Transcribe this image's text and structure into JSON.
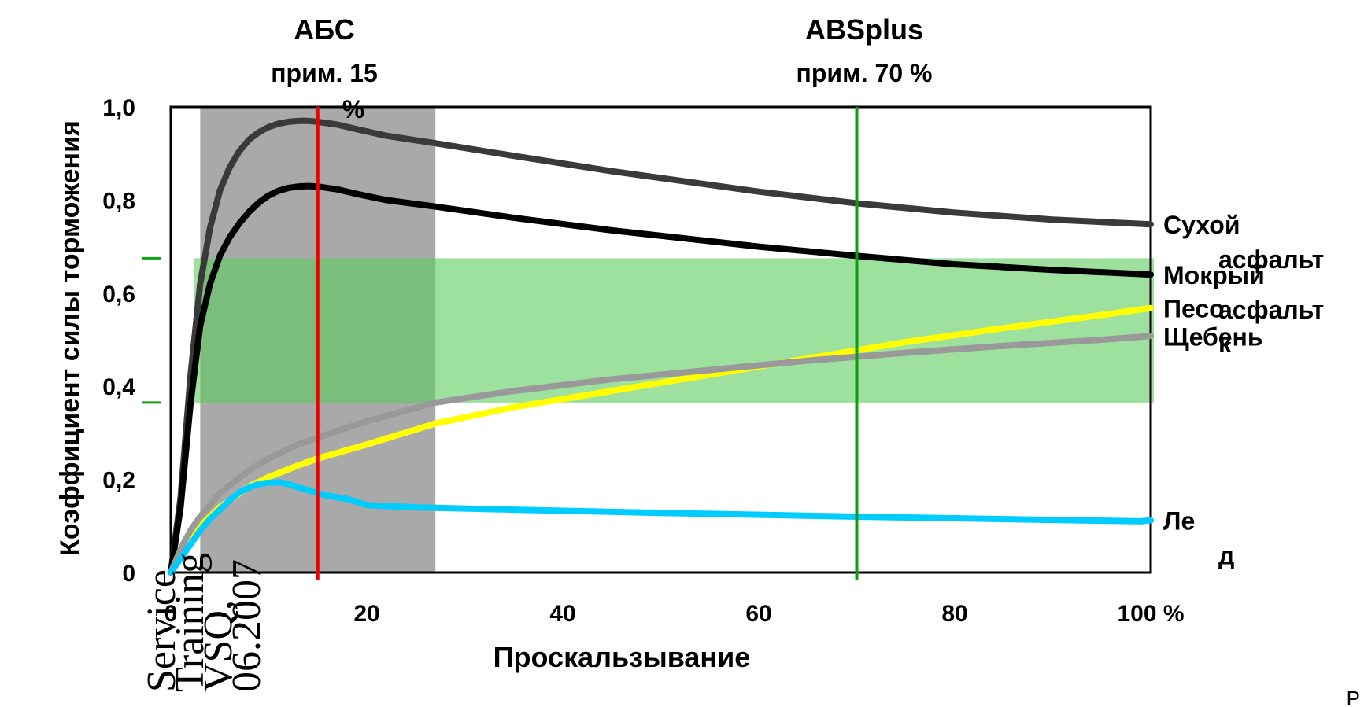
{
  "chart_data": {
    "type": "line",
    "xlabel": "Проскальзывание",
    "ylabel": "Коэффициент силы торможения",
    "xlim": [
      0,
      100
    ],
    "ylim": [
      0,
      1.0
    ],
    "x_ticks": [
      "0",
      "20",
      "40",
      "60",
      "80",
      "100 %"
    ],
    "y_ticks": [
      "0",
      "0,2",
      "0,4",
      "0,6",
      "0,8",
      "1,0"
    ],
    "annotations": {
      "abs_title": "АБС",
      "abs_sub_1": "прим. 15",
      "abs_sub_2": "%",
      "absplus_title": "ABSplus",
      "absplus_sub": "прим. 70 %"
    },
    "regions": {
      "abs_band_x": [
        3,
        27
      ],
      "target_band_y": [
        0.365,
        0.675
      ],
      "abs_line_x": 15,
      "absplus_line_x": 70
    },
    "series": [
      {
        "label_lines": [
          "Сухой",
          "асфальт"
        ],
        "color": "#3a3a3a",
        "x": [
          0,
          1,
          2,
          3,
          4,
          5,
          6,
          7,
          8,
          9,
          10,
          11,
          12,
          13,
          14,
          15,
          17,
          19,
          22,
          27,
          35,
          45,
          60,
          70,
          80,
          90,
          100
        ],
        "values": [
          0.0,
          0.16,
          0.42,
          0.62,
          0.74,
          0.82,
          0.87,
          0.905,
          0.93,
          0.946,
          0.957,
          0.964,
          0.968,
          0.97,
          0.97,
          0.968,
          0.962,
          0.952,
          0.938,
          0.922,
          0.895,
          0.862,
          0.818,
          0.793,
          0.773,
          0.758,
          0.748
        ]
      },
      {
        "label_lines": [
          "Мокрый",
          "асфальт"
        ],
        "color": "#000000",
        "x": [
          0,
          1,
          2,
          3,
          4,
          5,
          6,
          7,
          8,
          9,
          10,
          11,
          12,
          13,
          14,
          15,
          17,
          19,
          22,
          27,
          35,
          45,
          60,
          70,
          80,
          90,
          100
        ],
        "values": [
          0.0,
          0.14,
          0.36,
          0.53,
          0.62,
          0.68,
          0.72,
          0.75,
          0.775,
          0.795,
          0.81,
          0.82,
          0.826,
          0.829,
          0.83,
          0.829,
          0.823,
          0.813,
          0.8,
          0.786,
          0.762,
          0.735,
          0.7,
          0.68,
          0.662,
          0.65,
          0.64
        ]
      },
      {
        "label_lines": [
          "Песо",
          "к"
        ],
        "color": "#ffff00",
        "x": [
          0,
          1,
          2,
          3,
          5,
          8,
          10,
          13,
          15,
          20,
          27,
          35,
          45,
          55,
          65,
          75,
          85,
          95,
          100
        ],
        "values": [
          0.0,
          0.04,
          0.075,
          0.1,
          0.14,
          0.185,
          0.205,
          0.23,
          0.245,
          0.275,
          0.32,
          0.355,
          0.39,
          0.425,
          0.46,
          0.495,
          0.525,
          0.553,
          0.568
        ]
      },
      {
        "label_lines": [
          "Щебень"
        ],
        "color": "#999999",
        "x": [
          0,
          1,
          2,
          3,
          5,
          8,
          10,
          13,
          15,
          20,
          27,
          35,
          45,
          55,
          65,
          75,
          85,
          95,
          100
        ],
        "values": [
          0.0,
          0.05,
          0.09,
          0.12,
          0.17,
          0.22,
          0.245,
          0.275,
          0.29,
          0.325,
          0.365,
          0.39,
          0.415,
          0.435,
          0.455,
          0.472,
          0.487,
          0.5,
          0.508
        ]
      },
      {
        "label_lines": [
          "Ле",
          "д"
        ],
        "color": "#00ccff",
        "x": [
          0,
          1,
          2,
          3,
          4,
          5,
          6,
          7,
          8,
          9,
          10,
          11,
          12,
          13,
          14,
          15,
          16,
          18,
          20,
          25,
          35,
          50,
          70,
          90,
          99,
          100
        ],
        "values": [
          0.0,
          0.03,
          0.06,
          0.09,
          0.115,
          0.135,
          0.155,
          0.172,
          0.183,
          0.19,
          0.193,
          0.194,
          0.19,
          0.183,
          0.177,
          0.17,
          0.165,
          0.158,
          0.145,
          0.14,
          0.135,
          0.128,
          0.12,
          0.113,
          0.11,
          0.112
        ]
      }
    ]
  },
  "watermark": {
    "lines": [
      "Service",
      "Training",
      "VSQ,",
      "06.2007"
    ]
  },
  "corner_mark": "Р"
}
